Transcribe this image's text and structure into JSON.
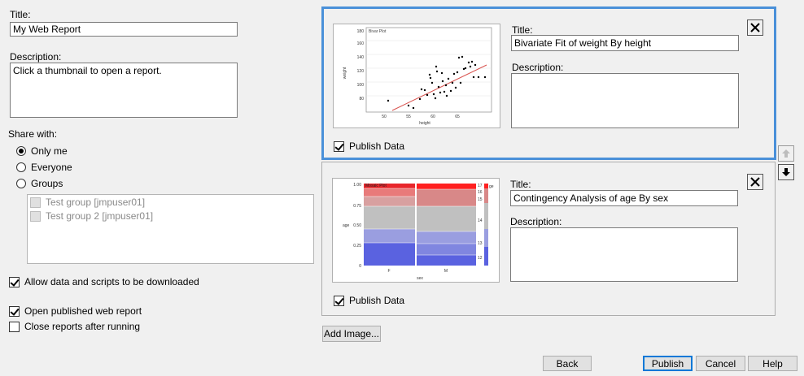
{
  "left": {
    "title_label": "Title:",
    "title_value": "My Web Report",
    "description_label": "Description:",
    "description_value": "Click a thumbnail to open a report.",
    "share_label": "Share with:",
    "share_options": [
      {
        "label": "Only me",
        "selected": true
      },
      {
        "label": "Everyone",
        "selected": false
      },
      {
        "label": "Groups",
        "selected": false
      }
    ],
    "groups": [
      {
        "label": "Test group [jmpuser01]"
      },
      {
        "label": "Test group 2 [jmpuser01]"
      }
    ],
    "allow_download_label": "Allow data and scripts to be downloaded",
    "open_published_label": "Open published web report",
    "close_reports_label": "Close reports after running"
  },
  "reports": [
    {
      "title_label": "Title:",
      "title_value": "Bivariate Fit of weight By height",
      "description_label": "Description:",
      "description_value": "",
      "publish_label": "Publish Data",
      "thumb": {
        "title": "Bivar Plot",
        "ylabel": "weight",
        "xlabel": "height",
        "yticks": [
          "180",
          "160",
          "140",
          "120",
          "100",
          "80"
        ],
        "xticks": [
          "50",
          "55",
          "60",
          "65"
        ]
      }
    },
    {
      "title_label": "Title:",
      "title_value": "Contingency Analysis of age By sex",
      "description_label": "Description:",
      "description_value": "",
      "publish_label": "Publish Data",
      "thumb": {
        "title": "Mosaic Plot",
        "ylabel": "age",
        "xlabel": "sex",
        "yticks": [
          "1.00",
          "0.75",
          "0.50",
          "0.25",
          "0"
        ],
        "xticks": [
          "F",
          "M"
        ],
        "right_labels": [
          "17",
          "16",
          "15",
          "14",
          "13",
          "12"
        ],
        "right_header": "ge"
      }
    }
  ],
  "buttons": {
    "add_image": "Add Image...",
    "back": "Back",
    "publish": "Publish",
    "cancel": "Cancel",
    "help": "Help"
  }
}
